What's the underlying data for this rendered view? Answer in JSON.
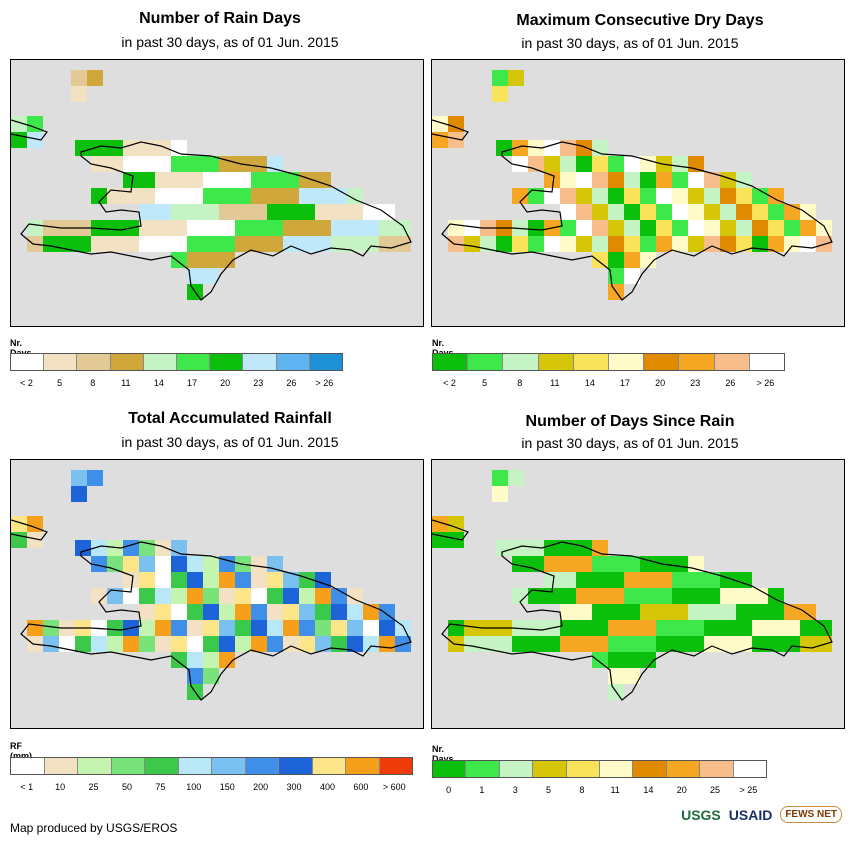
{
  "panels": [
    {
      "title": "Number of Rain Days",
      "subtitle": "in past 30 days, as of 01 Jun. 2015",
      "legend_title": "Nr. Days",
      "legend_colors": [
        "#ffffff",
        "#f3e1c3",
        "#e2c995",
        "#d0a73a",
        "#c5f3c3",
        "#3fe84a",
        "#0cbf0c",
        "#bfe9fb",
        "#5fb3f1",
        "#1e90d6"
      ],
      "legend_labels": [
        "< 2",
        "5",
        "8",
        "11",
        "14",
        "17",
        "20",
        "23",
        "26",
        "> 26"
      ],
      "map_palette": [
        "#e2c995",
        "#d0a73a",
        "#f3e1c3",
        "#c5f3c3",
        "#3fe84a",
        "#0cbf0c",
        "#bfe9fb",
        "#ffffff"
      ]
    },
    {
      "title": "Maximum Consecutive Dry Days",
      "subtitle": "in past 30 days, as of 01 Jun. 2015",
      "legend_title": "Nr. Days",
      "legend_colors": [
        "#0cbf0c",
        "#3fe84a",
        "#c5f3c3",
        "#d6c60a",
        "#f8e35a",
        "#fffbc9",
        "#e08a00",
        "#f5a623",
        "#f7be8c",
        "#ffffff"
      ],
      "legend_labels": [
        "< 2",
        "5",
        "8",
        "11",
        "14",
        "17",
        "20",
        "23",
        "26",
        "> 26"
      ],
      "map_palette": [
        "#c5f3c3",
        "#3fe84a",
        "#d6c60a",
        "#f8e35a",
        "#fffbc9",
        "#e08a00",
        "#f5a623",
        "#f7be8c",
        "#0cbf0c",
        "#ffffff"
      ]
    },
    {
      "title": "Total Accumulated Rainfall",
      "subtitle": "in past 30 days, as of 01 Jun. 2015",
      "legend_title": "RF (mm)",
      "legend_colors": [
        "#ffffff",
        "#f3e1c3",
        "#c5f3b0",
        "#7ae27a",
        "#3cc84a",
        "#b8e8f8",
        "#7ac0f0",
        "#3f8fe8",
        "#1c64d8",
        "#fde68a",
        "#f59f1a",
        "#f03c0a"
      ],
      "legend_labels": [
        "< 1",
        "10",
        "25",
        "50",
        "75",
        "100",
        "150",
        "200",
        "300",
        "400",
        "600",
        "> 600"
      ],
      "map_palette": [
        "#7ae27a",
        "#b8e8f8",
        "#7ac0f0",
        "#3f8fe8",
        "#1c64d8",
        "#fde68a",
        "#f59f1a",
        "#3cc84a",
        "#f3e1c3",
        "#c5f3b0",
        "#ffffff"
      ]
    },
    {
      "title": "Number of Days Since Rain",
      "subtitle": "in past 30 days, as of 01 Jun. 2015",
      "legend_title": "Nr. Days",
      "legend_colors": [
        "#0cbf0c",
        "#3fe84a",
        "#c5f3c3",
        "#d6c60a",
        "#f8e35a",
        "#fffbc9",
        "#e08a00",
        "#f5a623",
        "#f7be8c",
        "#ffffff"
      ],
      "legend_labels": [
        "0",
        "1",
        "3",
        "5",
        "8",
        "11",
        "14",
        "20",
        "25",
        "> 25"
      ],
      "map_palette": [
        "#0cbf0c",
        "#0cbf0c",
        "#0cbf0c",
        "#3fe84a",
        "#c5f3c3",
        "#fffbc9",
        "#f5a623",
        "#d6c60a"
      ]
    }
  ],
  "footer": {
    "credit": "Map produced by USGS/EROS",
    "logos": [
      "USGS",
      "USAID",
      "FEWS NET"
    ]
  }
}
